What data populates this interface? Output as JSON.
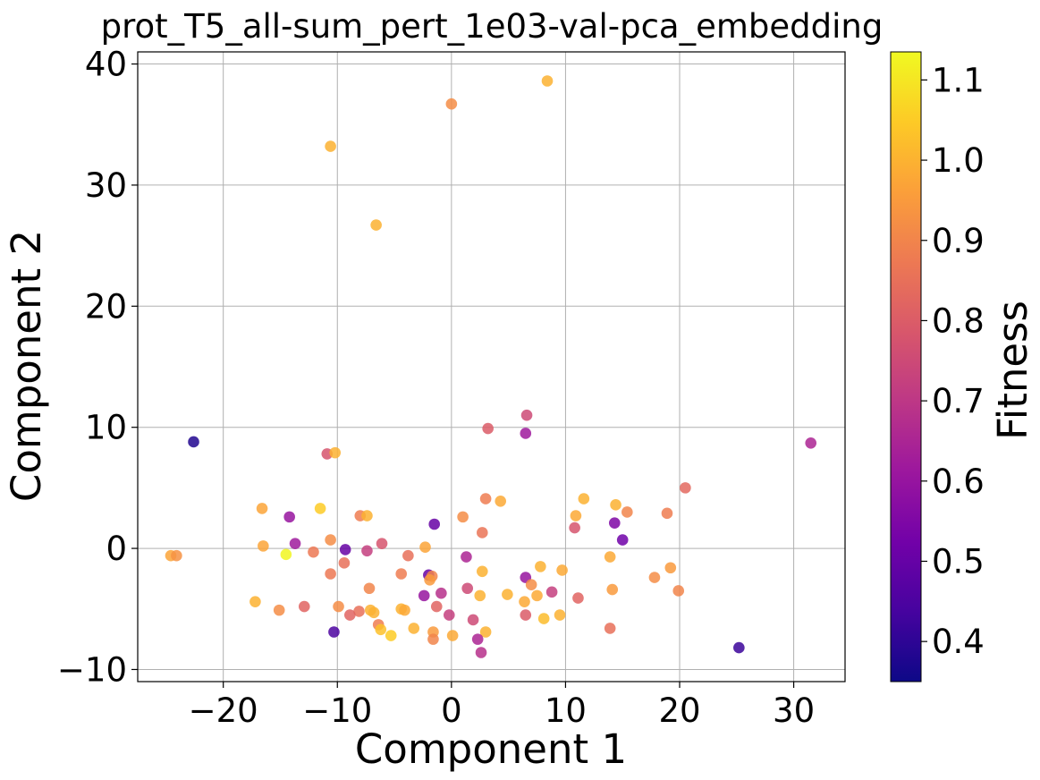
{
  "chart_data": {
    "type": "scatter",
    "title": "prot_T5_all-sum_pert_1e03-val-pca_embedding",
    "xlabel": "Component 1",
    "ylabel": "Component 2",
    "xlim": [
      -27.5,
      34.5
    ],
    "ylim": [
      -11,
      41
    ],
    "xticks": [
      -20,
      -10,
      0,
      10,
      20,
      30
    ],
    "xtick_labels": [
      "−20",
      "−10",
      "0",
      "10",
      "20",
      "30"
    ],
    "yticks": [
      -10,
      0,
      10,
      20,
      30,
      40
    ],
    "ytick_labels": [
      "−10",
      "0",
      "10",
      "20",
      "30",
      "40"
    ],
    "grid": true,
    "legend": "none",
    "colorbar": {
      "label": "Fitness",
      "range": [
        0.35,
        1.135
      ],
      "ticks": [
        0.4,
        0.5,
        0.6,
        0.7,
        0.8,
        0.9,
        1.0,
        1.1
      ],
      "tick_labels": [
        "0.4",
        "0.5",
        "0.6",
        "0.7",
        "0.8",
        "0.9",
        "1.0",
        "1.1"
      ],
      "colormap": "plasma"
    },
    "colormap_stops": [
      "#0d0887",
      "#46039f",
      "#7201a8",
      "#9c179e",
      "#bd3786",
      "#d8576b",
      "#ed7953",
      "#fb9f3a",
      "#fdca26",
      "#f0f921"
    ],
    "points": [
      {
        "x": 8.4,
        "y": 38.6,
        "fitness": 1.0
      },
      {
        "x": 0.0,
        "y": 36.7,
        "fitness": 0.92
      },
      {
        "x": -10.6,
        "y": 33.2,
        "fitness": 1.0
      },
      {
        "x": -6.6,
        "y": 26.7,
        "fitness": 1.0
      },
      {
        "x": -22.6,
        "y": 8.8,
        "fitness": 0.38
      },
      {
        "x": 31.5,
        "y": 8.7,
        "fitness": 0.65
      },
      {
        "x": 6.6,
        "y": 11.0,
        "fitness": 0.75
      },
      {
        "x": 6.5,
        "y": 9.5,
        "fitness": 0.62
      },
      {
        "x": 3.2,
        "y": 9.9,
        "fitness": 0.8
      },
      {
        "x": -10.9,
        "y": 7.8,
        "fitness": 0.78
      },
      {
        "x": -10.2,
        "y": 7.9,
        "fitness": 1.0
      },
      {
        "x": 20.5,
        "y": 5.0,
        "fitness": 0.83
      },
      {
        "x": 3.0,
        "y": 4.1,
        "fitness": 0.88
      },
      {
        "x": 4.3,
        "y": 3.9,
        "fitness": 0.98
      },
      {
        "x": 11.6,
        "y": 4.1,
        "fitness": 1.0
      },
      {
        "x": 14.4,
        "y": 3.6,
        "fitness": 1.0
      },
      {
        "x": 15.4,
        "y": 3.0,
        "fitness": 0.9
      },
      {
        "x": -16.6,
        "y": 3.3,
        "fitness": 0.97
      },
      {
        "x": -11.5,
        "y": 3.3,
        "fitness": 1.05
      },
      {
        "x": -14.2,
        "y": 2.6,
        "fitness": 0.6
      },
      {
        "x": -8.0,
        "y": 2.7,
        "fitness": 0.88
      },
      {
        "x": -7.4,
        "y": 2.7,
        "fitness": 1.0
      },
      {
        "x": 1.0,
        "y": 2.6,
        "fitness": 0.92
      },
      {
        "x": 10.9,
        "y": 2.7,
        "fitness": 0.98
      },
      {
        "x": 18.9,
        "y": 2.9,
        "fitness": 0.88
      },
      {
        "x": -1.5,
        "y": 2.0,
        "fitness": 0.5
      },
      {
        "x": 14.3,
        "y": 2.1,
        "fitness": 0.55
      },
      {
        "x": 10.8,
        "y": 1.7,
        "fitness": 0.78
      },
      {
        "x": 2.7,
        "y": 1.3,
        "fitness": 0.86
      },
      {
        "x": 15.0,
        "y": 0.7,
        "fitness": 0.52
      },
      {
        "x": -16.5,
        "y": 0.2,
        "fitness": 0.97
      },
      {
        "x": -13.7,
        "y": 0.4,
        "fitness": 0.62
      },
      {
        "x": -10.6,
        "y": 0.7,
        "fitness": 0.92
      },
      {
        "x": -6.1,
        "y": 0.4,
        "fitness": 0.78
      },
      {
        "x": -2.3,
        "y": 0.1,
        "fitness": 0.97
      },
      {
        "x": -9.3,
        "y": -0.1,
        "fitness": 0.5
      },
      {
        "x": -12.1,
        "y": -0.3,
        "fitness": 0.87
      },
      {
        "x": -7.4,
        "y": -0.2,
        "fitness": 0.72
      },
      {
        "x": -24.6,
        "y": -0.6,
        "fitness": 0.97
      },
      {
        "x": -24.1,
        "y": -0.6,
        "fitness": 0.93
      },
      {
        "x": -14.5,
        "y": -0.5,
        "fitness": 1.13
      },
      {
        "x": -3.8,
        "y": -0.6,
        "fitness": 0.85
      },
      {
        "x": 1.3,
        "y": -0.7,
        "fitness": 0.65
      },
      {
        "x": 13.9,
        "y": -0.7,
        "fitness": 0.98
      },
      {
        "x": -9.4,
        "y": -1.2,
        "fitness": 0.85
      },
      {
        "x": 7.8,
        "y": -1.5,
        "fitness": 1.0
      },
      {
        "x": 9.7,
        "y": -1.8,
        "fitness": 0.98
      },
      {
        "x": 19.2,
        "y": -1.6,
        "fitness": 0.95
      },
      {
        "x": -10.6,
        "y": -2.1,
        "fitness": 0.87
      },
      {
        "x": -4.4,
        "y": -2.1,
        "fitness": 0.88
      },
      {
        "x": -2.0,
        "y": -2.2,
        "fitness": 0.5
      },
      {
        "x": -1.7,
        "y": -2.3,
        "fitness": 0.9
      },
      {
        "x": -1.9,
        "y": -2.6,
        "fitness": 0.95
      },
      {
        "x": 2.7,
        "y": -1.9,
        "fitness": 1.0
      },
      {
        "x": 6.5,
        "y": -2.4,
        "fitness": 0.6
      },
      {
        "x": 17.8,
        "y": -2.4,
        "fitness": 0.92
      },
      {
        "x": -7.2,
        "y": -3.3,
        "fitness": 0.9
      },
      {
        "x": 1.4,
        "y": -3.3,
        "fitness": 0.75
      },
      {
        "x": 7.0,
        "y": -3.0,
        "fitness": 0.92
      },
      {
        "x": 14.1,
        "y": -3.4,
        "fitness": 0.95
      },
      {
        "x": 19.9,
        "y": -3.5,
        "fitness": 0.9
      },
      {
        "x": -2.4,
        "y": -3.9,
        "fitness": 0.6
      },
      {
        "x": -0.9,
        "y": -3.7,
        "fitness": 0.68
      },
      {
        "x": 2.5,
        "y": -3.9,
        "fitness": 1.0
      },
      {
        "x": 4.9,
        "y": -3.8,
        "fitness": 1.0
      },
      {
        "x": 7.5,
        "y": -3.9,
        "fitness": 0.98
      },
      {
        "x": 8.8,
        "y": -3.6,
        "fitness": 0.72
      },
      {
        "x": 11.1,
        "y": -4.1,
        "fitness": 0.82
      },
      {
        "x": -17.2,
        "y": -4.4,
        "fitness": 1.0
      },
      {
        "x": 6.4,
        "y": -4.4,
        "fitness": 0.98
      },
      {
        "x": -15.1,
        "y": -5.1,
        "fitness": 0.92
      },
      {
        "x": -12.9,
        "y": -4.8,
        "fitness": 0.82
      },
      {
        "x": -9.9,
        "y": -4.8,
        "fitness": 0.92
      },
      {
        "x": -8.1,
        "y": -5.2,
        "fitness": 0.85
      },
      {
        "x": -7.1,
        "y": -5.1,
        "fitness": 1.0
      },
      {
        "x": -6.8,
        "y": -5.3,
        "fitness": 1.0
      },
      {
        "x": -4.4,
        "y": -5.0,
        "fitness": 1.0
      },
      {
        "x": -4.1,
        "y": -5.1,
        "fitness": 0.98
      },
      {
        "x": -1.3,
        "y": -4.8,
        "fitness": 0.82
      },
      {
        "x": -8.9,
        "y": -5.5,
        "fitness": 0.82
      },
      {
        "x": -0.2,
        "y": -5.5,
        "fitness": 0.72
      },
      {
        "x": 6.5,
        "y": -5.5,
        "fitness": 0.8
      },
      {
        "x": 9.5,
        "y": -5.5,
        "fitness": 1.0
      },
      {
        "x": 8.1,
        "y": -5.8,
        "fitness": 1.02
      },
      {
        "x": 1.9,
        "y": -5.9,
        "fitness": 0.75
      },
      {
        "x": -6.4,
        "y": -6.3,
        "fitness": 0.88
      },
      {
        "x": -6.2,
        "y": -6.7,
        "fitness": 1.03
      },
      {
        "x": -3.3,
        "y": -6.6,
        "fitness": 1.0
      },
      {
        "x": 13.9,
        "y": -6.6,
        "fitness": 0.85
      },
      {
        "x": -10.3,
        "y": -6.9,
        "fitness": 0.45
      },
      {
        "x": -5.3,
        "y": -7.2,
        "fitness": 1.05
      },
      {
        "x": -1.6,
        "y": -6.9,
        "fitness": 0.95
      },
      {
        "x": -1.6,
        "y": -7.5,
        "fitness": 0.9
      },
      {
        "x": 0.1,
        "y": -7.2,
        "fitness": 0.98
      },
      {
        "x": 3.0,
        "y": -6.9,
        "fitness": 1.0
      },
      {
        "x": 2.3,
        "y": -7.5,
        "fitness": 0.65
      },
      {
        "x": 2.6,
        "y": -8.6,
        "fitness": 0.68
      },
      {
        "x": 25.2,
        "y": -8.2,
        "fitness": 0.42
      }
    ]
  }
}
